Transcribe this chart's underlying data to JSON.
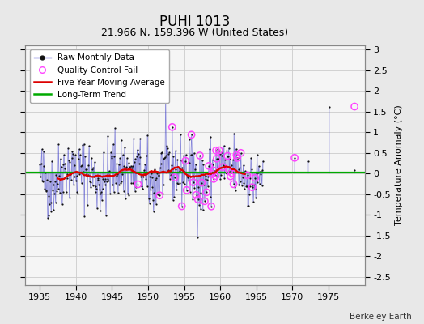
{
  "title": "PUHI 1013",
  "subtitle": "21.966 N, 159.396 W (United States)",
  "ylabel": "Temperature Anomaly (°C)",
  "credit": "Berkeley Earth",
  "xlim": [
    1933,
    1980
  ],
  "ylim": [
    -2.7,
    3.1
  ],
  "yticks": [
    -2.5,
    -2,
    -1.5,
    -1,
    -0.5,
    0,
    0.5,
    1,
    1.5,
    2,
    2.5,
    3
  ],
  "xticks": [
    1935,
    1940,
    1945,
    1950,
    1955,
    1960,
    1965,
    1970,
    1975
  ],
  "bg_color": "#e8e8e8",
  "plot_bg_color": "#f5f5f5",
  "grid_color": "#cccccc",
  "raw_line_color": "#4444cc",
  "raw_marker_color": "#111111",
  "ma_color": "#dd0000",
  "trend_color": "#00aa00",
  "qc_fail_color": "#ff44ff",
  "legend_fontsize": 7.5,
  "title_fontsize": 12,
  "subtitle_fontsize": 9,
  "tick_fontsize": 8,
  "seed": 42
}
